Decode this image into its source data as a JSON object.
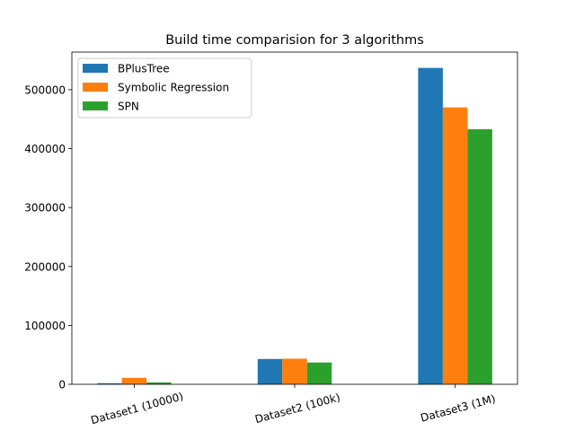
{
  "chart_data": {
    "type": "bar",
    "title": "Build time comparision for 3 algorithms",
    "xlabel": "",
    "ylabel": "",
    "categories": [
      "Dataset1 (10000)",
      "Dataset2 (100k)",
      "Dataset3 (1M)"
    ],
    "series": [
      {
        "name": "BPlusTree",
        "color": "#1f77b4",
        "values": [
          1800,
          43000,
          537000
        ]
      },
      {
        "name": "Symbolic Regression",
        "color": "#ff7f0e",
        "values": [
          11000,
          43500,
          470000
        ]
      },
      {
        "name": "SPN",
        "color": "#2ca02c",
        "values": [
          3200,
          37000,
          433000
        ]
      }
    ],
    "yticks": [
      0,
      100000,
      200000,
      300000,
      400000,
      500000
    ],
    "ytick_labels": [
      "0",
      "100000",
      "200000",
      "300000",
      "400000",
      "500000"
    ],
    "ylim": [
      0,
      563850
    ],
    "grid": false,
    "legend_position": "top-left"
  }
}
